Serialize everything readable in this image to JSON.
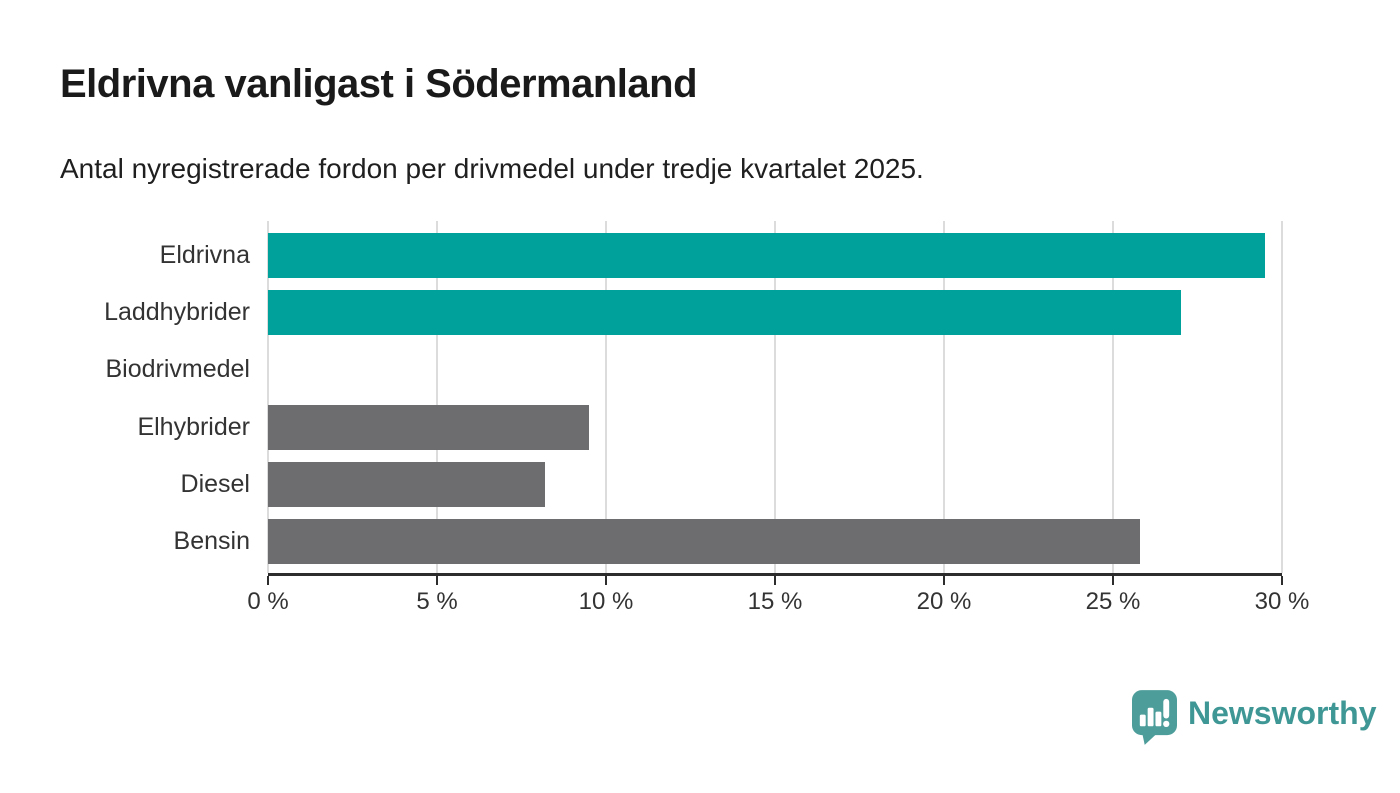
{
  "chart_data": {
    "type": "bar",
    "orientation": "horizontal",
    "title": "Eldrivna vanligast i Södermanland",
    "subtitle": "Antal nyregistrerade fordon per drivmedel under tredje kvartalet 2025.",
    "categories": [
      "Eldrivna",
      "Laddhybrider",
      "Biodrivmedel",
      "Elhybrider",
      "Diesel",
      "Bensin"
    ],
    "values": [
      29.5,
      27.0,
      0,
      9.5,
      8.2,
      25.8
    ],
    "unit": "%",
    "xlim": [
      0,
      30
    ],
    "xticks": [
      0,
      5,
      10,
      15,
      20,
      25,
      30
    ],
    "xtick_labels": [
      "0 %",
      "5 %",
      "10 %",
      "15 %",
      "20 %",
      "25 %",
      "30 %"
    ],
    "grid": true,
    "legend": "none",
    "highlight_color": "#00A09B",
    "default_color": "#6D6D70",
    "bar_colors": [
      "#00A09B",
      "#00A09B",
      "#6D6D70",
      "#6D6D70",
      "#6D6D70",
      "#6D6D70"
    ]
  },
  "branding": {
    "logo_text": "Newsworthy",
    "logo_color": "#3f9795",
    "icon_color": "#4d9d9b"
  }
}
